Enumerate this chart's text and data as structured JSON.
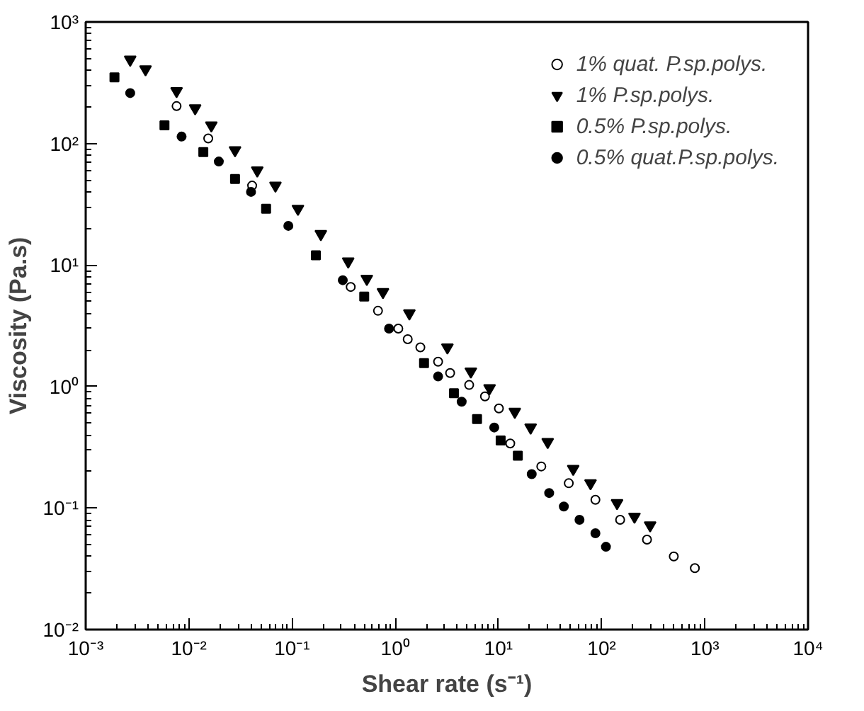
{
  "chart_data": {
    "type": "scatter",
    "xlabel": "Shear rate (s⁻¹)",
    "ylabel": "Viscosity (Pa.s)",
    "log": "xy",
    "grid": false,
    "legend": "top right",
    "xlim": [
      0.001,
      10000
    ],
    "ylim": [
      0.01,
      1000
    ],
    "xticks": [
      {
        "value": 0.001,
        "label": "10⁻³"
      },
      {
        "value": 0.01,
        "label": "10⁻²"
      },
      {
        "value": 0.1,
        "label": "10⁻¹"
      },
      {
        "value": 1,
        "label": "10⁰"
      },
      {
        "value": 10,
        "label": "10¹"
      },
      {
        "value": 100,
        "label": "10²"
      },
      {
        "value": 1000,
        "label": "10³"
      },
      {
        "value": 10000,
        "label": "10⁴"
      }
    ],
    "yticks": [
      {
        "value": 0.01,
        "label": "10⁻²"
      },
      {
        "value": 0.1,
        "label": "10⁻¹"
      },
      {
        "value": 1,
        "label": "10⁰"
      },
      {
        "value": 10,
        "label": "10¹"
      },
      {
        "value": 100,
        "label": "10²"
      },
      {
        "value": 1000,
        "label": "10³"
      }
    ],
    "series": [
      {
        "name": "1% quat. P.sp.polys.",
        "color": "#ffffff",
        "marker": "circle",
        "x": [
          0.0076,
          0.0154,
          0.041,
          0.37,
          0.68,
          1.07,
          1.32,
          1.75,
          2.6,
          3.4,
          5.2,
          7.4,
          10.1,
          13,
          26,
          48,
          87,
          151,
          275,
          500,
          800
        ],
        "values": [
          203,
          110,
          45,
          6.6,
          4.2,
          3.0,
          2.45,
          2.1,
          1.6,
          1.29,
          1.03,
          0.83,
          0.66,
          0.34,
          0.22,
          0.16,
          0.117,
          0.08,
          0.055,
          0.04,
          0.032
        ]
      },
      {
        "name": "1% P.sp.polys.",
        "color": "#000000",
        "marker": "triangle",
        "x": [
          0.0027,
          0.0038,
          0.0076,
          0.0115,
          0.0165,
          0.028,
          0.046,
          0.069,
          0.114,
          0.19,
          0.35,
          0.53,
          0.76,
          1.37,
          3.2,
          5.4,
          8.2,
          14.4,
          20.5,
          30,
          53,
          78,
          141,
          208,
          295
        ],
        "values": [
          490,
          408,
          270,
          195,
          141,
          88,
          60,
          45,
          29,
          18,
          10.7,
          7.7,
          6.0,
          4.0,
          2.1,
          1.33,
          0.97,
          0.62,
          0.46,
          0.35,
          0.21,
          0.16,
          0.11,
          0.085,
          0.072
        ]
      },
      {
        "name": "0.5% P.sp.polys.",
        "color": "#000000",
        "marker": "square",
        "x": [
          0.0019,
          0.0058,
          0.0138,
          0.028,
          0.056,
          0.17,
          0.5,
          1.9,
          3.7,
          6.2,
          10.5,
          15.4
        ],
        "values": [
          350,
          141,
          85,
          51,
          29,
          12,
          5.5,
          1.56,
          0.88,
          0.54,
          0.36,
          0.27
        ]
      },
      {
        "name": "0.5% quat.P.sp.polys.",
        "color": "#000000",
        "marker": "circle",
        "x": [
          0.0027,
          0.0085,
          0.0195,
          0.04,
          0.092,
          0.31,
          0.87,
          2.6,
          4.4,
          9.1,
          21,
          31,
          43,
          61,
          87,
          110
        ],
        "values": [
          260,
          114,
          71,
          40,
          21,
          7.5,
          3.0,
          1.21,
          0.75,
          0.46,
          0.19,
          0.133,
          0.103,
          0.08,
          0.062,
          0.048
        ]
      }
    ]
  }
}
